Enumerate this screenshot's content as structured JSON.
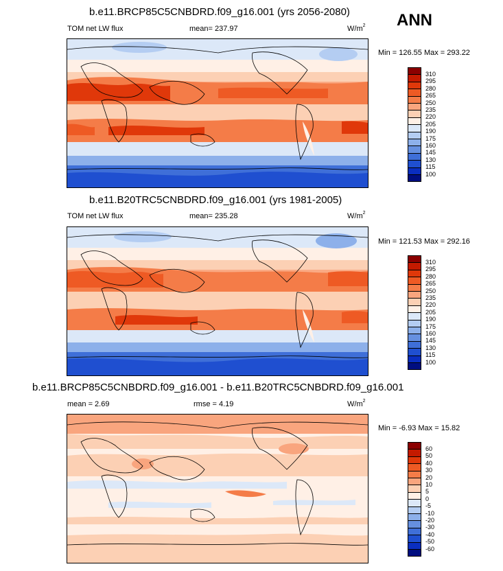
{
  "season": "ANN",
  "panels": [
    {
      "title": "b.e11.BRCP85C5CNBDRD.f09_g16.001 (yrs 2056-2080)",
      "left_label": "TOM net LW flux",
      "center_label": "mean= 237.97",
      "units": "W/m",
      "units_exp": "2",
      "minmax": "Min = 126.55 Max = 293.22"
    },
    {
      "title": "b.e11.B20TRC5CNBDRD.f09_g16.001 (yrs 1981-2005)",
      "left_label": "TOM net LW flux",
      "center_label": "mean= 235.28",
      "units": "W/m",
      "units_exp": "2",
      "minmax": "Min = 121.53 Max = 292.16"
    },
    {
      "title": "b.e11.BRCP85C5CNBDRD.f09_g16.001 - b.e11.B20TRC5CNBDRD.f09_g16.001",
      "left_label": "mean =   2.69",
      "center_label": "rmse =   4.19",
      "units": "W/m",
      "units_exp": "2",
      "minmax": "Min =  -6.93 Max =  15.82"
    }
  ],
  "colorbar_abs": {
    "levels": [
      "310",
      "295",
      "280",
      "265",
      "250",
      "235",
      "220",
      "205",
      "190",
      "175",
      "160",
      "145",
      "130",
      "115",
      "100"
    ],
    "colors": [
      "#8b0000",
      "#c41a00",
      "#e0380a",
      "#ee5a24",
      "#f47c48",
      "#f9a57e",
      "#fcd0b4",
      "#fff0e6",
      "#dce8f8",
      "#b4cdf2",
      "#8db0ea",
      "#6690e0",
      "#3f6fd8",
      "#1f4fd0",
      "#0a2ec0",
      "#000e80"
    ]
  },
  "colorbar_diff": {
    "levels": [
      "60",
      "50",
      "40",
      "30",
      "20",
      "10",
      "5",
      "0",
      "-5",
      "-10",
      "-20",
      "-30",
      "-40",
      "-50",
      "-60"
    ],
    "colors": [
      "#8b0000",
      "#c41a00",
      "#e0380a",
      "#ee5a24",
      "#f47c48",
      "#f9a57e",
      "#fcd0b4",
      "#fff0e6",
      "#dce8f8",
      "#b4cdf2",
      "#8db0ea",
      "#6690e0",
      "#3f6fd8",
      "#1f4fd0",
      "#0a2ec0",
      "#000e80"
    ]
  },
  "chart_data": [
    {
      "type": "heatmap",
      "title": "b.e11.BRCP85C5CNBDRD.f09_g16.001 (yrs 2056-2080)",
      "variable": "TOM net LW flux",
      "units": "W/m2",
      "mean": 237.97,
      "min": 126.55,
      "max": 293.22,
      "contour_levels": [
        100,
        115,
        130,
        145,
        160,
        175,
        190,
        205,
        220,
        235,
        250,
        265,
        280,
        295,
        310
      ]
    },
    {
      "type": "heatmap",
      "title": "b.e11.B20TRC5CNBDRD.f09_g16.001 (yrs 1981-2005)",
      "variable": "TOM net LW flux",
      "units": "W/m2",
      "mean": 235.28,
      "min": 121.53,
      "max": 292.16,
      "contour_levels": [
        100,
        115,
        130,
        145,
        160,
        175,
        190,
        205,
        220,
        235,
        250,
        265,
        280,
        295,
        310
      ]
    },
    {
      "type": "heatmap",
      "title": "b.e11.BRCP85C5CNBDRD.f09_g16.001 - b.e11.B20TRC5CNBDRD.f09_g16.001",
      "units": "W/m2",
      "mean": 2.69,
      "rmse": 4.19,
      "min": -6.93,
      "max": 15.82,
      "contour_levels": [
        -60,
        -50,
        -40,
        -30,
        -20,
        -10,
        -5,
        0,
        5,
        10,
        20,
        30,
        40,
        50,
        60
      ]
    }
  ]
}
